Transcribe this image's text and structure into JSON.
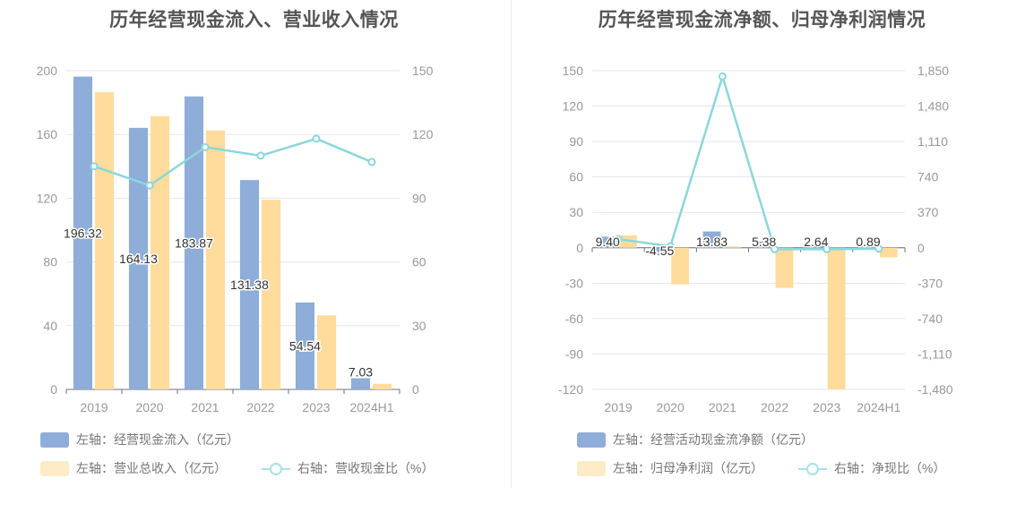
{
  "chart_data": [
    {
      "type": "bar",
      "title": "历年经营现金流入、营业收入情况",
      "categories": [
        "2019",
        "2020",
        "2021",
        "2022",
        "2023",
        "2024H1"
      ],
      "left_axis": {
        "ylim": [
          0,
          200
        ],
        "ticks": [
          0,
          40,
          80,
          120,
          160,
          200
        ]
      },
      "right_axis": {
        "ylim": [
          0,
          150
        ],
        "ticks": [
          0,
          30,
          60,
          90,
          120,
          150
        ]
      },
      "series": [
        {
          "name": "左轴：经营现金流入（亿元）",
          "type": "bar",
          "axis": "left",
          "color": "#8eadd9",
          "values": [
            196.32,
            164.13,
            183.87,
            131.38,
            54.54,
            7.03
          ],
          "labels": [
            "196.32",
            "164.13",
            "183.87",
            "131.38",
            "54.54",
            "7.03"
          ]
        },
        {
          "name": "左轴：营业总收入（亿元）",
          "type": "bar",
          "axis": "left",
          "color": "#ffdb9c",
          "values": [
            186.5,
            171.5,
            162.5,
            119,
            46.5,
            3.5
          ]
        },
        {
          "name": "右轴：营收现金比（%）",
          "type": "line",
          "axis": "right",
          "color": "#8bd7dc",
          "values": [
            105,
            96,
            114,
            110,
            118,
            107
          ]
        }
      ]
    },
    {
      "type": "bar",
      "title": "历年经营现金流净额、归母净利润情况",
      "categories": [
        "2019",
        "2020",
        "2021",
        "2022",
        "2023",
        "2024H1"
      ],
      "left_axis": {
        "ylim": [
          -120,
          150
        ],
        "ticks": [
          -120,
          -90,
          -60,
          -30,
          0,
          30,
          60,
          90,
          120,
          150
        ]
      },
      "right_axis": {
        "ylim": [
          -1480,
          1850
        ],
        "ticks": [
          -1480,
          -1110,
          -740,
          -370,
          0,
          370,
          740,
          1110,
          1480,
          1850
        ],
        "tick_labels": [
          "-1,480",
          "-1,110",
          "-740",
          "-370",
          "0",
          "370",
          "740",
          "1,110",
          "1,480",
          "1,850"
        ]
      },
      "series": [
        {
          "name": "左轴：经营活动现金流净额（亿元）",
          "type": "bar",
          "axis": "left",
          "color": "#8eadd9",
          "values": [
            9.4,
            -4.55,
            13.83,
            5.38,
            2.64,
            0.89
          ],
          "labels": [
            "9.40",
            "-4.55",
            "13.83",
            "5.38",
            "2.64",
            "0.89"
          ]
        },
        {
          "name": "左轴：归母净利润（亿元）",
          "type": "bar",
          "axis": "left",
          "color": "#ffdb9c",
          "values": [
            10.5,
            -31,
            1,
            -34,
            -120,
            -8
          ]
        },
        {
          "name": "右轴：净现比（%）",
          "type": "line",
          "axis": "right",
          "color": "#8bd7dc",
          "values": [
            90,
            15,
            1790,
            -15,
            -15,
            -10
          ]
        }
      ]
    }
  ]
}
